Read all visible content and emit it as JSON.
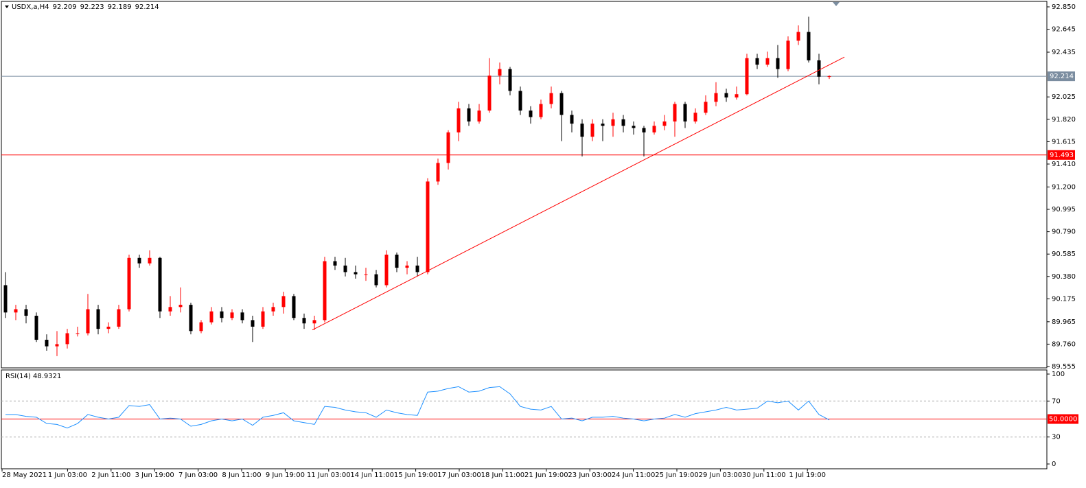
{
  "chart_data": {
    "type": "candlestick",
    "symbol": "USDX,a,H4",
    "header_ohlc": [
      92.209,
      92.223,
      92.189,
      92.214
    ],
    "bull_color": "#ff0000",
    "bear_color": "#000000",
    "ylim": [
      89.555,
      92.85
    ],
    "yticks": [
      {
        "value": 92.85,
        "label": "92.850"
      },
      {
        "value": 92.645,
        "label": "92.645"
      },
      {
        "value": 92.435,
        "label": "92.435"
      },
      {
        "value": 92.025,
        "label": "92.025"
      },
      {
        "value": 91.82,
        "label": "91.820"
      },
      {
        "value": 91.615,
        "label": "91.615"
      },
      {
        "value": 91.41,
        "label": "91.410"
      },
      {
        "value": 91.2,
        "label": "91.200"
      },
      {
        "value": 90.995,
        "label": "90.995"
      },
      {
        "value": 90.79,
        "label": "90.790"
      },
      {
        "value": 90.585,
        "label": "90.585"
      },
      {
        "value": 90.38,
        "label": "90.380"
      },
      {
        "value": 90.175,
        "label": "90.175"
      },
      {
        "value": 89.965,
        "label": "89.965"
      },
      {
        "value": 89.76,
        "label": "89.760"
      },
      {
        "value": 89.555,
        "label": "89.555"
      }
    ],
    "hlines": [
      {
        "value": 92.214,
        "color": "#7b8da0"
      },
      {
        "value": 91.493,
        "color": "#ff0000"
      }
    ],
    "trendline": {
      "from": [
        29.8,
        89.89
      ],
      "to": [
        81.47,
        92.39
      ],
      "color": "#ff0000"
    },
    "time_labels": [
      "28 May 2021",
      "1 Jun 03:00",
      "2 Jun 11:00",
      "3 Jun 19:00",
      "7 Jun 03:00",
      "8 Jun 11:00",
      "9 Jun 19:00",
      "11 Jun 03:00",
      "14 Jun 11:00",
      "15 Jun 19:00",
      "17 Jun 03:00",
      "18 Jun 11:00",
      "21 Jun 19:00",
      "23 Jun 03:00",
      "24 Jun 11:00",
      "25 Jun 19:00",
      "29 Jun 03:00",
      "30 Jun 11:00",
      "1 Jul 19:00"
    ],
    "open": [
      90.3,
      90.05,
      90.08,
      90.02,
      89.8,
      89.74,
      89.76,
      89.86,
      89.86,
      90.08,
      89.9,
      89.92,
      90.08,
      90.55,
      90.5,
      90.55,
      90.06,
      90.1,
      90.12,
      89.88,
      89.96,
      90.06,
      90.0,
      90.05,
      89.98,
      89.92,
      90.06,
      90.1,
      90.2,
      90.0,
      89.95,
      89.98,
      90.52,
      90.48,
      90.42,
      90.4,
      90.4,
      90.3,
      90.58,
      90.46,
      90.48,
      90.42,
      91.25,
      91.42,
      91.7,
      91.92,
      91.8,
      91.9,
      92.22,
      92.28,
      92.08,
      91.9,
      91.84,
      91.96,
      92.06,
      91.86,
      91.78,
      91.66,
      91.78,
      91.76,
      91.82,
      91.76,
      91.74,
      91.7,
      91.76,
      91.8,
      91.96,
      91.8,
      91.88,
      91.98,
      92.06,
      92.02,
      92.05,
      92.38,
      92.32,
      92.38,
      92.28,
      92.54,
      92.62,
      92.36,
      92.209
    ],
    "high": [
      90.42,
      90.12,
      90.12,
      90.05,
      89.85,
      89.88,
      89.9,
      89.92,
      90.22,
      90.12,
      89.96,
      90.12,
      90.58,
      90.58,
      90.62,
      90.56,
      90.2,
      90.28,
      90.14,
      89.98,
      90.1,
      90.1,
      90.08,
      90.08,
      90.02,
      90.1,
      90.14,
      90.24,
      90.22,
      90.04,
      90.02,
      90.56,
      90.56,
      90.55,
      90.48,
      90.46,
      90.44,
      90.62,
      90.6,
      90.52,
      90.56,
      91.28,
      91.46,
      91.72,
      91.98,
      91.96,
      91.96,
      92.38,
      92.34,
      92.3,
      92.12,
      91.94,
      92.0,
      92.12,
      92.08,
      91.9,
      91.82,
      91.82,
      91.82,
      91.88,
      91.86,
      91.8,
      91.76,
      91.8,
      91.86,
      91.98,
      91.98,
      91.92,
      92.04,
      92.16,
      92.1,
      92.12,
      92.42,
      92.42,
      92.44,
      92.5,
      92.58,
      92.68,
      92.76,
      92.42,
      92.223
    ],
    "low": [
      90.0,
      89.98,
      89.95,
      89.78,
      89.7,
      89.65,
      89.72,
      89.83,
      89.84,
      89.85,
      89.86,
      89.9,
      90.06,
      90.46,
      90.48,
      90.0,
      90.02,
      90.05,
      89.85,
      89.86,
      89.94,
      89.96,
      89.98,
      89.95,
      89.78,
      89.9,
      90.02,
      90.04,
      89.98,
      89.9,
      89.89,
      89.96,
      90.44,
      90.38,
      90.36,
      90.34,
      90.28,
      90.28,
      90.42,
      90.4,
      90.38,
      90.4,
      91.22,
      91.36,
      91.62,
      91.76,
      91.78,
      91.88,
      92.14,
      92.04,
      91.86,
      91.78,
      91.82,
      91.92,
      91.62,
      91.7,
      91.48,
      91.62,
      91.62,
      91.66,
      91.7,
      91.68,
      91.48,
      91.68,
      91.72,
      91.66,
      91.74,
      91.78,
      91.86,
      91.94,
      91.98,
      92.0,
      92.04,
      92.28,
      92.3,
      92.2,
      92.26,
      92.5,
      92.34,
      92.14,
      92.189
    ],
    "close": [
      90.05,
      90.08,
      90.02,
      89.8,
      89.74,
      89.76,
      89.86,
      89.86,
      90.08,
      89.9,
      89.92,
      90.08,
      90.55,
      90.5,
      90.55,
      90.06,
      90.1,
      90.12,
      89.88,
      89.96,
      90.06,
      90.0,
      90.05,
      89.98,
      89.92,
      90.06,
      90.1,
      90.2,
      90.0,
      89.95,
      89.98,
      90.52,
      90.48,
      90.42,
      90.4,
      90.4,
      90.3,
      90.58,
      90.46,
      90.48,
      90.42,
      91.25,
      91.42,
      91.7,
      91.92,
      91.8,
      91.9,
      92.22,
      92.28,
      92.08,
      91.9,
      91.84,
      91.96,
      92.06,
      91.86,
      91.78,
      91.66,
      91.78,
      91.76,
      91.82,
      91.76,
      91.74,
      91.7,
      91.76,
      91.8,
      91.96,
      91.8,
      91.88,
      91.98,
      92.06,
      92.02,
      92.05,
      92.38,
      92.32,
      92.38,
      92.28,
      92.54,
      92.62,
      92.36,
      92.21,
      92.214
    ],
    "rsi": {
      "label": "RSI(14)",
      "value": 48.9321,
      "color": "#1e90ff",
      "ylim": [
        0,
        100
      ],
      "yticks": [
        100,
        70,
        30,
        0
      ],
      "levels": [
        {
          "value": 70,
          "color": "#b0b0b0"
        },
        {
          "value": 50,
          "color": "#ff0000",
          "label": "50.0000"
        },
        {
          "value": 30,
          "color": "#b0b0b0"
        }
      ],
      "values": [
        55,
        55,
        53,
        52,
        45,
        44,
        40,
        45,
        55,
        52,
        50,
        52,
        65,
        64,
        66,
        50,
        51,
        50,
        42,
        44,
        48,
        50,
        48,
        50,
        43,
        52,
        54,
        57,
        48,
        46,
        44,
        64,
        63,
        60,
        58,
        57,
        52,
        60,
        57,
        55,
        54,
        80,
        81,
        84,
        86,
        80,
        81,
        85,
        86,
        78,
        64,
        61,
        60,
        64,
        50,
        51,
        48,
        52,
        52,
        53,
        51,
        50,
        48,
        50,
        51,
        55,
        52,
        56,
        58,
        60,
        63,
        60,
        61,
        62,
        70,
        68,
        70,
        60,
        70,
        55,
        49
      ]
    }
  }
}
